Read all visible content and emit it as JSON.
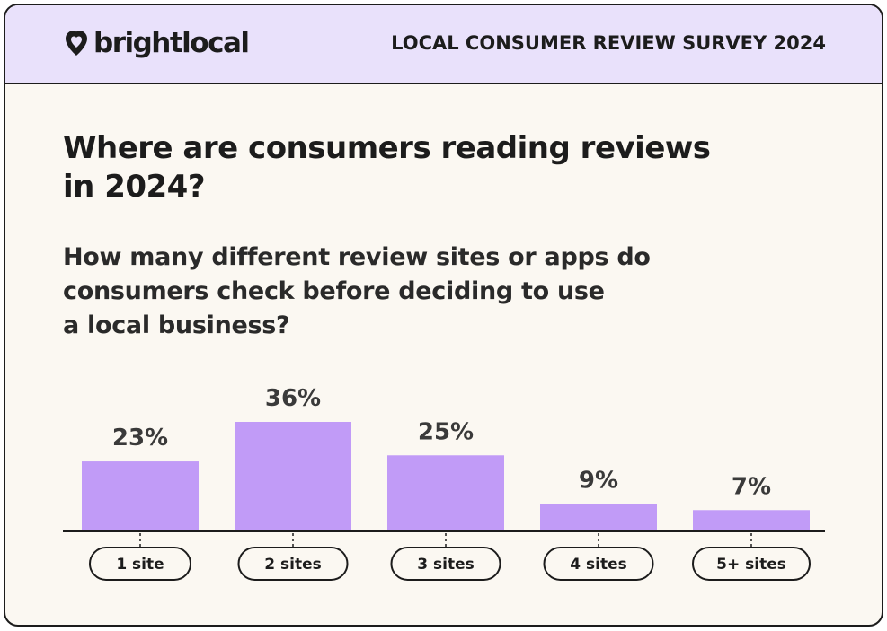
{
  "header": {
    "logo_text": "brightlocal",
    "survey_title": "LOCAL CONSUMER REVIEW SURVEY 2024"
  },
  "title_lines": [
    "Where are consumers reading reviews",
    "in 2024?"
  ],
  "subtitle_lines": [
    "How many different review sites or apps do",
    "consumers check before deciding to use",
    "a local business?"
  ],
  "colors": {
    "bar": "#c19bf7",
    "header_bg": "#e9e1fb",
    "card_bg": "#fbf8f2",
    "ink": "#1c1c1c"
  },
  "chart_data": {
    "type": "bar",
    "categories": [
      "1 site",
      "2 sites",
      "3 sites",
      "4 sites",
      "5+ sites"
    ],
    "values": [
      23,
      36,
      25,
      9,
      7
    ],
    "value_labels": [
      "23%",
      "36%",
      "25%",
      "9%",
      "7%"
    ],
    "ylim": [
      0,
      36
    ],
    "grid": false,
    "legend": "none"
  }
}
